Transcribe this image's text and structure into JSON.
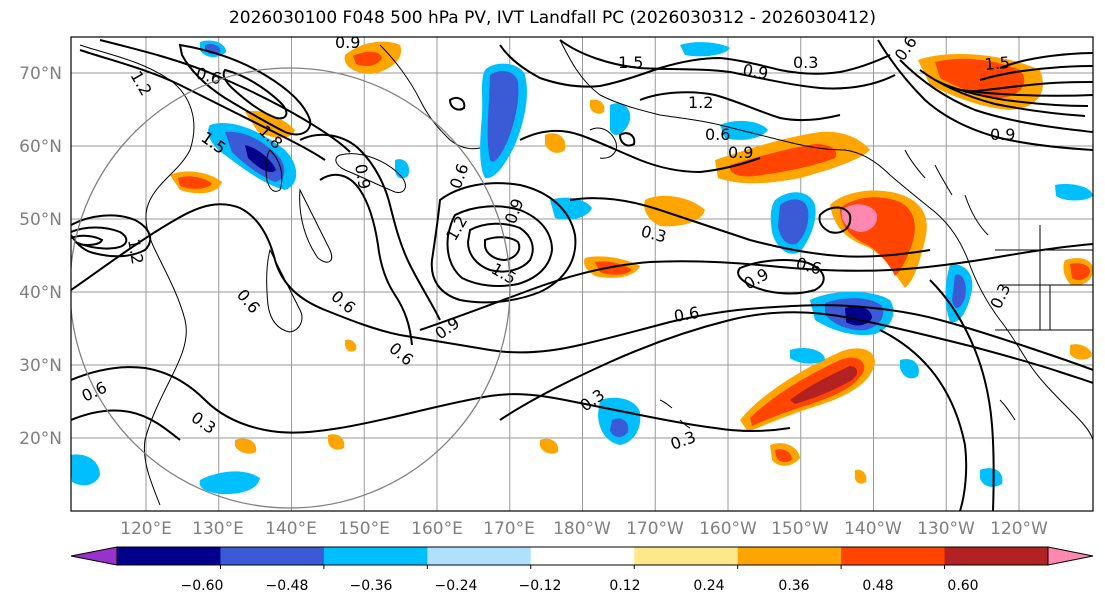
{
  "title": "2026030100 F048 500 hPa PV, IVT Landfall PC (2026030312 - 2026030412)",
  "lat_labels": [
    "70°N",
    "60°N",
    "50°N",
    "40°N",
    "30°N",
    "20°N"
  ],
  "lon_labels": [
    "120°E",
    "130°E",
    "140°E",
    "150°E",
    "160°E",
    "170°E",
    "180°W",
    "170°W",
    "160°W",
    "150°W",
    "140°W",
    "130°W",
    "120°W"
  ],
  "colorbar": {
    "ticks": [
      "−0.60",
      "−0.48",
      "−0.36",
      "−0.24",
      "−0.12",
      "0.12",
      "0.24",
      "0.36",
      "0.48",
      "0.60"
    ],
    "colors": [
      "#9932cc",
      "#00008b",
      "#3b5bd6",
      "#00bfff",
      "#b0e0ff",
      "#ffffff",
      "#ffe88a",
      "#ffa500",
      "#ff4500",
      "#b22222",
      "#ff88b0"
    ]
  },
  "contour_labels": [
    "0.9",
    "1.2",
    "0.6",
    "1.5",
    "1.8",
    "0.3",
    "0.9",
    "0.6",
    "1.2",
    "1.5",
    "0.6",
    "0.9",
    "0.3",
    "0.6",
    "0.3",
    "0.3",
    "0.6",
    "0.9",
    "0.6",
    "1.5",
    "0.3",
    "0.9",
    "1.2",
    "1.5",
    "0.6",
    "0.9",
    "0.6",
    "0.9",
    "0.3",
    "0.6",
    "0.6",
    "1.5",
    "1.2",
    "0.9"
  ]
}
